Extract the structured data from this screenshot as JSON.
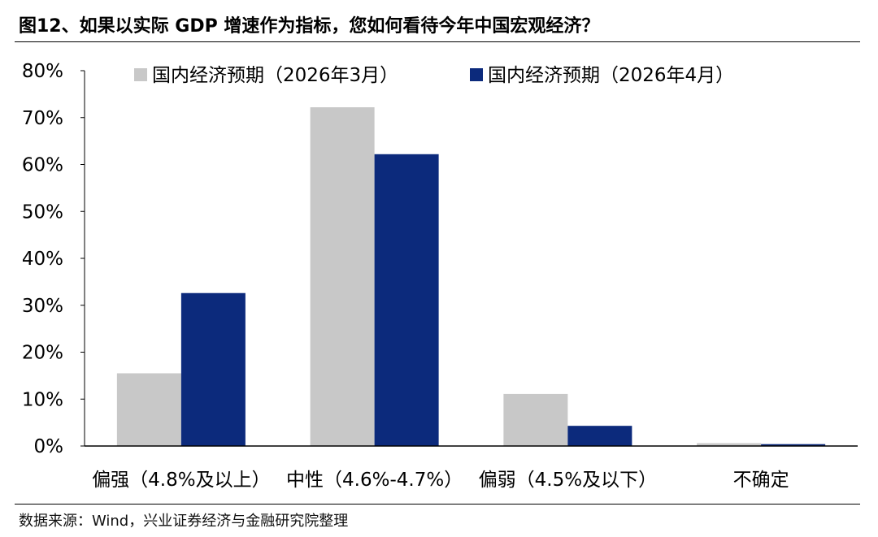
{
  "header": {
    "title": "图12、如果以实际 GDP 增速作为指标，您如何看待今年中国宏观经济？"
  },
  "footer": {
    "source": "数据来源：Wind，兴业证券经济与金融研究院整理"
  },
  "colors": {
    "series_march": "#c8c8c8",
    "series_april": "#0c2a7c"
  },
  "chart_data": {
    "type": "bar",
    "title": "",
    "xlabel": "",
    "ylabel": "",
    "categories": [
      "偏强（4.8%及以上）",
      "中性（4.6%-4.7%）",
      "偏弱（4.5%及以下）",
      "不确定"
    ],
    "series": [
      {
        "name": "国内经济预期（2026年3月）",
        "values": [
          15.5,
          72.2,
          11.1,
          0.6
        ]
      },
      {
        "name": "国内经济预期（2026年4月）",
        "values": [
          32.6,
          62.2,
          4.3,
          0.4
        ]
      }
    ],
    "ylim": [
      0,
      80
    ],
    "yticks": [
      "0%",
      "10%",
      "20%",
      "30%",
      "40%",
      "50%",
      "60%",
      "70%",
      "80%"
    ],
    "grid": false,
    "legend_position": "top"
  }
}
